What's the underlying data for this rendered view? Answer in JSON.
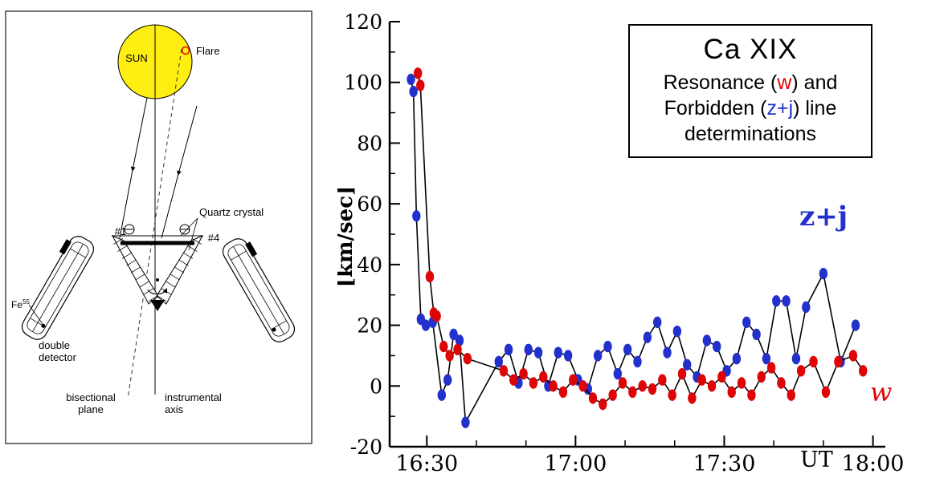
{
  "diagram": {
    "sun": "SUN",
    "flare": "Flare",
    "quartz": "Quartz crystal",
    "hash1": "#1",
    "hash4": "#4",
    "fe": "Fe",
    "fe_sup": "55",
    "dd1": "double",
    "dd2": "detector",
    "bp1": "bisectional",
    "bp2": "plane",
    "ia1": "instrumental",
    "ia2": "axis"
  },
  "chart": {
    "ylabel": "[km/sec]",
    "ut": "UT",
    "zj_label": "z+j",
    "w_label": "w",
    "yticks": [
      -20,
      0,
      20,
      40,
      60,
      80,
      100,
      120
    ],
    "legend": {
      "title": "Ca XIX",
      "l1a": "Resonance (",
      "l1b": "w",
      "l1c": ") and",
      "l2a": "Forbidden (",
      "l2b": "z+j",
      "l2c": ") line",
      "l3": "determinations"
    }
  },
  "chart_data": {
    "type": "scatter",
    "title": "Ca XIX Resonance (w) and Forbidden (z+j) line determinations",
    "xlabel": "UT",
    "ylabel": "[km/sec]",
    "x_unit": "minutes after 16:00 UT",
    "xlim_minutes": [
      22.5,
      122.5
    ],
    "ylim": [
      -20,
      120
    ],
    "x_major_ticks_minutes": [
      30,
      60,
      90,
      120
    ],
    "x_minor_ticks_minutes": [
      40,
      50,
      70,
      80,
      100,
      110
    ],
    "x_tick_labels": [
      "16:30",
      "17:00",
      "17:30",
      "18:00"
    ],
    "grid": false,
    "legend_position": "top-right box",
    "series": [
      {
        "name": "z+j (forbidden line)",
        "color": "#2230cc",
        "marker": "ellipse",
        "points": [
          [
            26.8,
            101
          ],
          [
            27.3,
            97
          ],
          [
            27.9,
            56
          ],
          [
            28.8,
            22
          ],
          [
            29.8,
            20
          ],
          [
            31.2,
            21
          ],
          [
            33.0,
            -3
          ],
          [
            34.2,
            2
          ],
          [
            35.4,
            17
          ],
          [
            36.6,
            15
          ],
          [
            37.8,
            -12
          ],
          [
            44.5,
            8
          ],
          [
            46.5,
            12
          ],
          [
            48.5,
            1
          ],
          [
            50.5,
            12
          ],
          [
            52.5,
            11
          ],
          [
            54.5,
            0
          ],
          [
            56.5,
            11
          ],
          [
            58.5,
            10
          ],
          [
            60.5,
            2
          ],
          [
            62.5,
            -1
          ],
          [
            64.5,
            10
          ],
          [
            66.5,
            13
          ],
          [
            68.5,
            4
          ],
          [
            70.5,
            12
          ],
          [
            72.5,
            8
          ],
          [
            74.5,
            16
          ],
          [
            76.5,
            21
          ],
          [
            78.5,
            11
          ],
          [
            80.5,
            18
          ],
          [
            82.5,
            7
          ],
          [
            84.5,
            3
          ],
          [
            86.5,
            15
          ],
          [
            88.5,
            13
          ],
          [
            90.5,
            5
          ],
          [
            92.5,
            9
          ],
          [
            94.5,
            21
          ],
          [
            96.5,
            17
          ],
          [
            98.5,
            9
          ],
          [
            100.5,
            28
          ],
          [
            102.5,
            28
          ],
          [
            104.5,
            9
          ],
          [
            106.5,
            26
          ],
          [
            110.0,
            37
          ],
          [
            113.5,
            8
          ],
          [
            116.5,
            20
          ]
        ]
      },
      {
        "name": "w (resonance line)",
        "color": "#dd0505",
        "marker": "ellipse",
        "points": [
          [
            28.2,
            103
          ],
          [
            28.7,
            99
          ],
          [
            30.6,
            36
          ],
          [
            31.4,
            24
          ],
          [
            32.0,
            23
          ],
          [
            33.4,
            13
          ],
          [
            34.6,
            10
          ],
          [
            36.2,
            12
          ],
          [
            38.2,
            9
          ],
          [
            45.5,
            5
          ],
          [
            47.5,
            2
          ],
          [
            49.5,
            4
          ],
          [
            51.5,
            1
          ],
          [
            53.5,
            3
          ],
          [
            55.5,
            0
          ],
          [
            57.5,
            -2
          ],
          [
            59.5,
            2
          ],
          [
            61.5,
            0
          ],
          [
            63.5,
            -4
          ],
          [
            65.5,
            -6
          ],
          [
            67.5,
            -3
          ],
          [
            69.5,
            1
          ],
          [
            71.5,
            -2
          ],
          [
            73.5,
            0
          ],
          [
            75.5,
            -1
          ],
          [
            77.5,
            2
          ],
          [
            79.5,
            -3
          ],
          [
            81.5,
            4
          ],
          [
            83.5,
            -4
          ],
          [
            85.5,
            2
          ],
          [
            87.5,
            0
          ],
          [
            89.5,
            3
          ],
          [
            91.5,
            -2
          ],
          [
            93.5,
            1
          ],
          [
            95.5,
            -3
          ],
          [
            97.5,
            3
          ],
          [
            99.5,
            6
          ],
          [
            101.5,
            1
          ],
          [
            103.5,
            -3
          ],
          [
            105.5,
            5
          ],
          [
            108.0,
            8
          ],
          [
            110.5,
            -2
          ],
          [
            113.0,
            8
          ],
          [
            116.0,
            10
          ],
          [
            118.0,
            5
          ]
        ]
      }
    ]
  }
}
